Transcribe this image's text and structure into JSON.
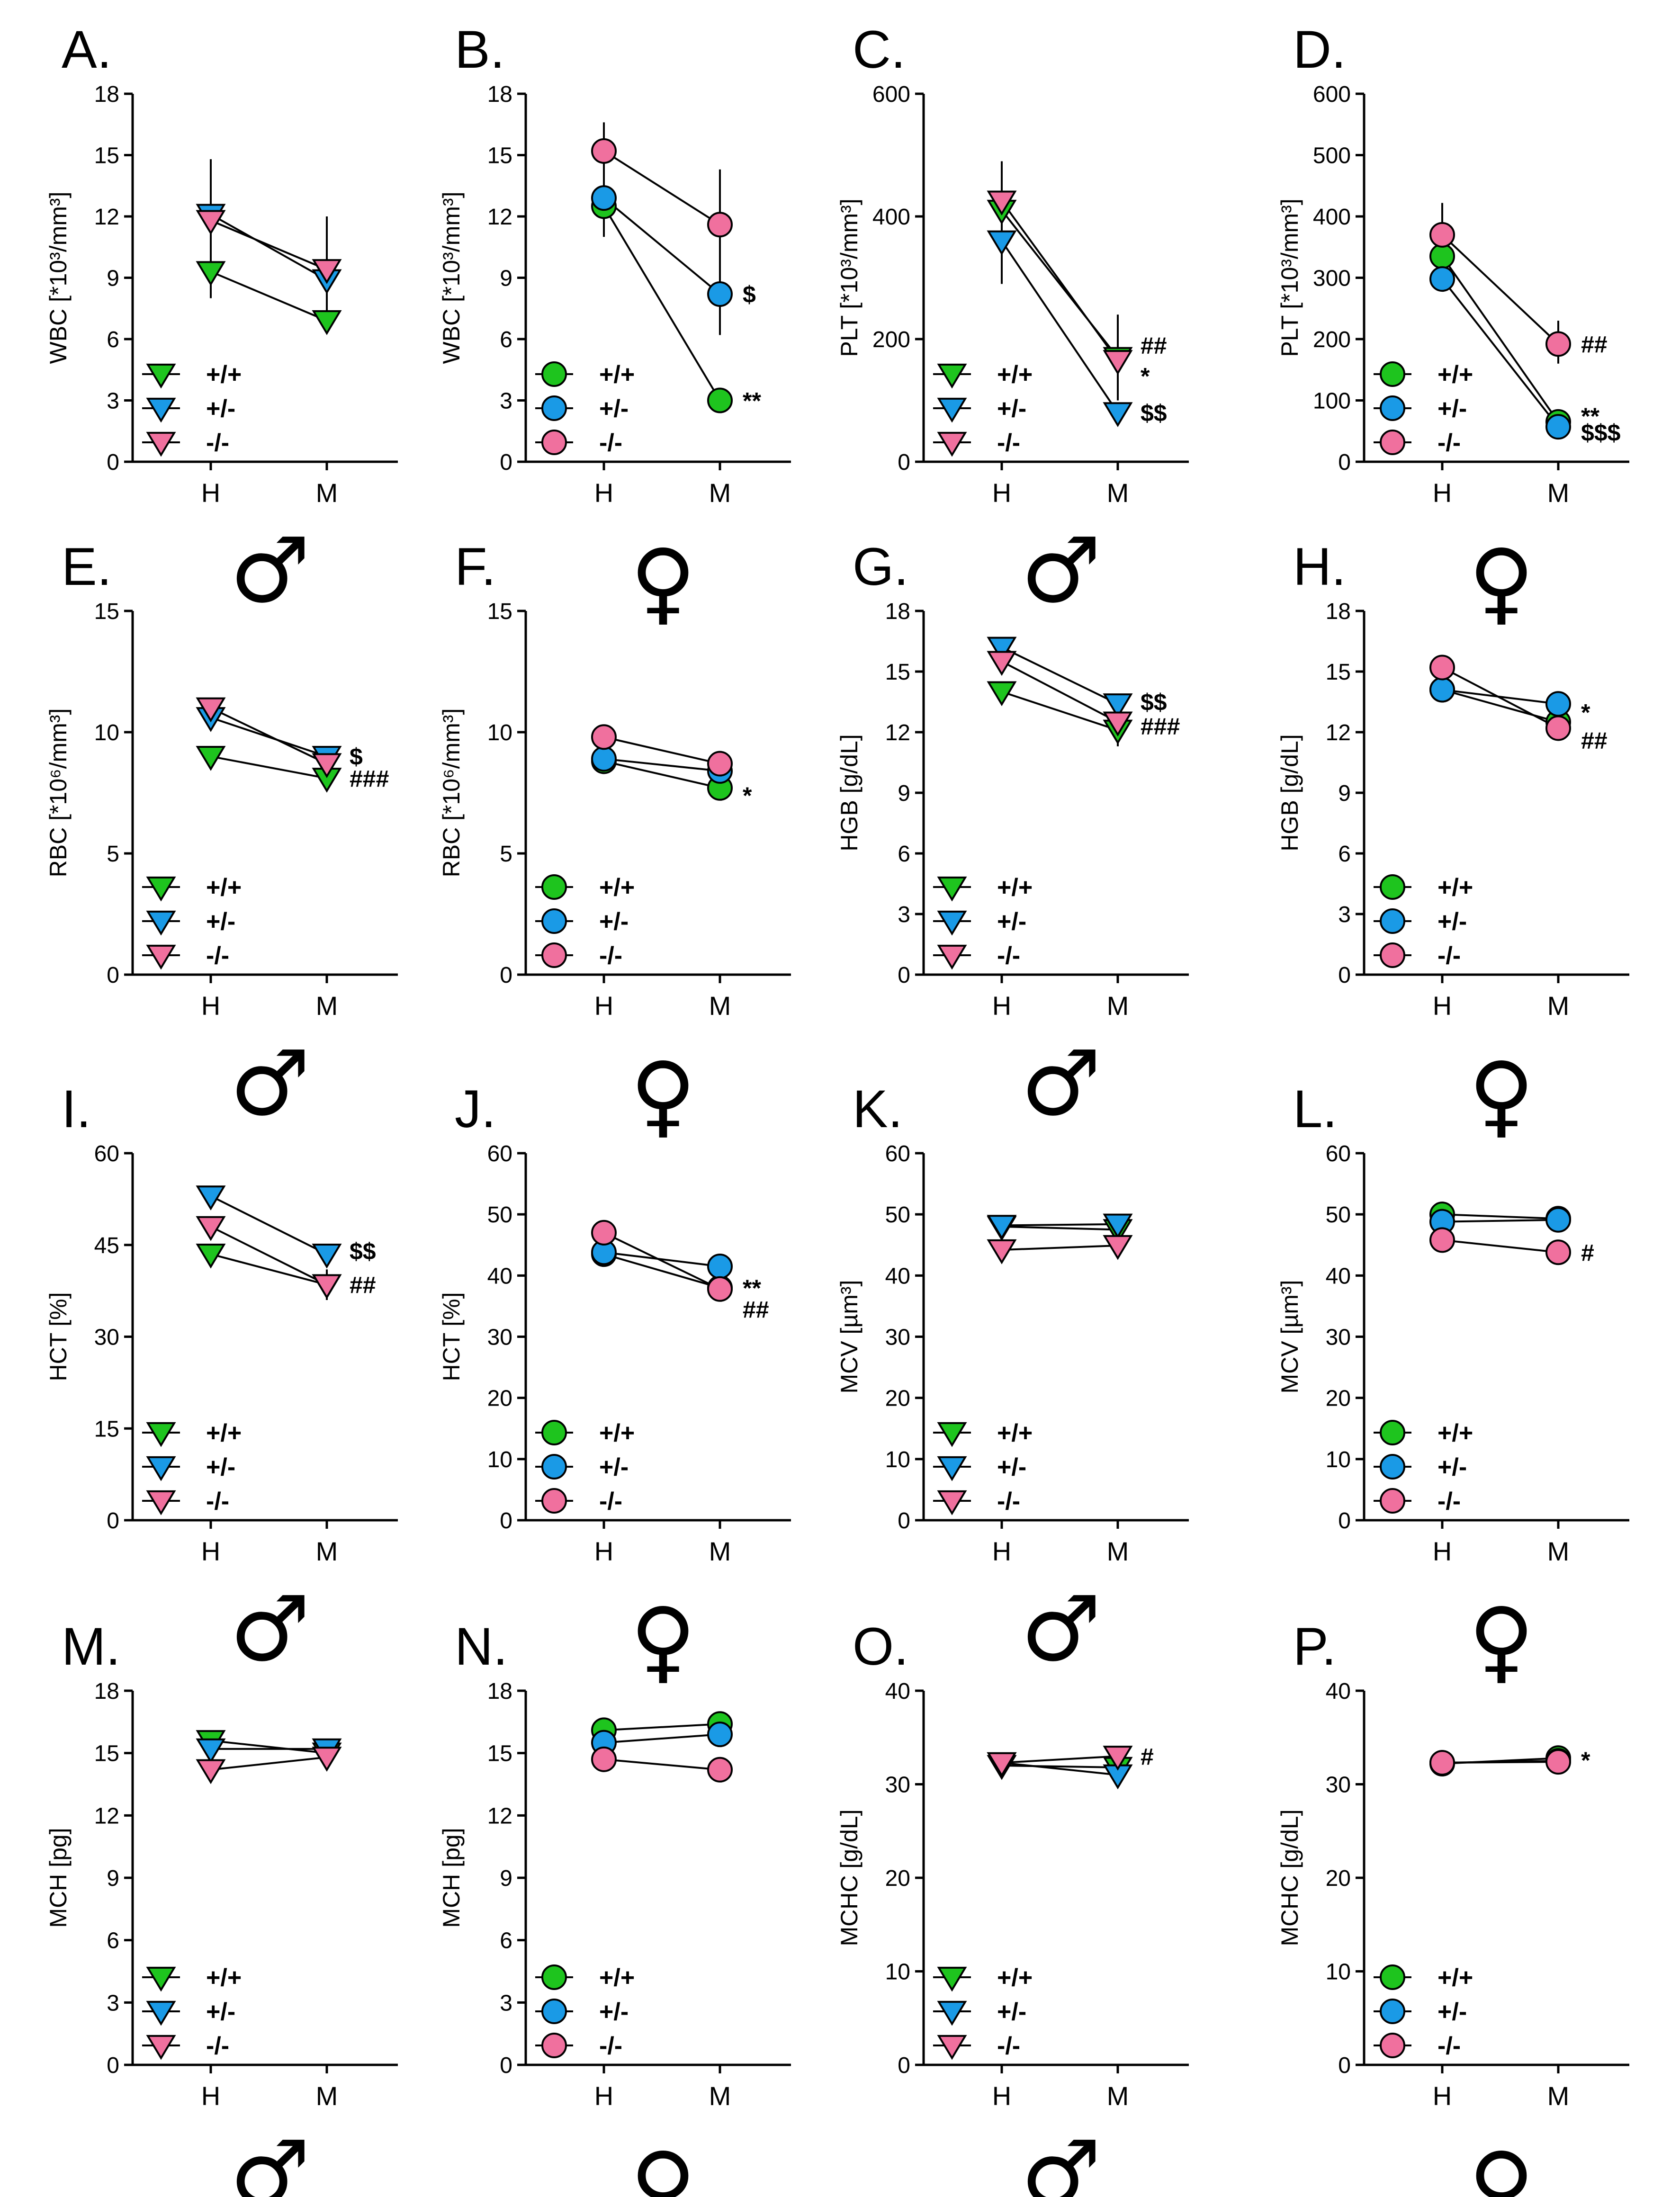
{
  "chart_data": [
    {
      "type": "line",
      "label": "A.",
      "ylabel": "WBC [*10³/mm³]",
      "ylim": [
        0,
        18
      ],
      "ticks": [
        0,
        3,
        6,
        9,
        12,
        15,
        18
      ],
      "categories": [
        "H",
        "M"
      ],
      "sex": "♂",
      "marker": "triangle",
      "series": [
        {
          "name": "+/+",
          "values": [
            9.3,
            6.9
          ]
        },
        {
          "name": "+/-",
          "values": [
            12.1,
            8.9
          ]
        },
        {
          "name": "-/-",
          "values": [
            11.8,
            9.4
          ]
        }
      ],
      "errors": [
        {
          "series": "-/-",
          "cat": "H",
          "lo": 8.0,
          "hi": 14.8
        },
        {
          "series": "-/-",
          "cat": "M",
          "lo": 7.2,
          "hi": 12.0
        }
      ],
      "annotations": []
    },
    {
      "type": "line",
      "label": "B.",
      "ylabel": "WBC [*10³/mm³]",
      "ylim": [
        0,
        18
      ],
      "ticks": [
        0,
        3,
        6,
        9,
        12,
        15,
        18
      ],
      "categories": [
        "H",
        "M"
      ],
      "sex": "♀",
      "marker": "circle",
      "series": [
        {
          "name": "+/+",
          "values": [
            12.5,
            3.0
          ]
        },
        {
          "name": "+/-",
          "values": [
            12.9,
            8.2
          ]
        },
        {
          "name": "-/-",
          "values": [
            15.2,
            11.6
          ]
        }
      ],
      "errors": [
        {
          "series": "-/-",
          "cat": "H",
          "lo": 11.0,
          "hi": 16.6
        },
        {
          "series": "-/-",
          "cat": "M",
          "lo": 6.2,
          "hi": 14.3
        }
      ],
      "annotations": [
        {
          "text": "$",
          "cat": "M",
          "y": 8.2
        },
        {
          "text": "**",
          "cat": "M",
          "y": 3.0
        }
      ]
    },
    {
      "type": "line",
      "label": "C.",
      "ylabel": "PLT [*10³/mm³]",
      "ylim": [
        0,
        600
      ],
      "ticks": [
        0,
        200,
        400,
        600
      ],
      "categories": [
        "H",
        "M"
      ],
      "sex": "♂",
      "marker": "triangle",
      "series": [
        {
          "name": "+/+",
          "values": [
            410,
            170
          ]
        },
        {
          "name": "+/-",
          "values": [
            360,
            80
          ]
        },
        {
          "name": "-/-",
          "values": [
            425,
            165
          ]
        }
      ],
      "errors": [
        {
          "series": "+/-",
          "cat": "H",
          "lo": 290,
          "hi": 490
        },
        {
          "series": "+/+",
          "cat": "M",
          "lo": 100,
          "hi": 240
        }
      ],
      "annotations": [
        {
          "text": "##",
          "cat": "M",
          "y": 190
        },
        {
          "text": "*",
          "cat": "M",
          "y": 140
        },
        {
          "text": "$$",
          "cat": "M",
          "y": 80
        }
      ]
    },
    {
      "type": "line",
      "label": "D.",
      "ylabel": "PLT [*10³/mm³]",
      "ylim": [
        0,
        600
      ],
      "ticks": [
        0,
        100,
        200,
        300,
        400,
        500,
        600
      ],
      "categories": [
        "H",
        "M"
      ],
      "sex": "♀",
      "marker": "circle",
      "series": [
        {
          "name": "+/+",
          "values": [
            335,
            65
          ]
        },
        {
          "name": "+/-",
          "values": [
            298,
            57
          ]
        },
        {
          "name": "-/-",
          "values": [
            370,
            192
          ]
        }
      ],
      "errors": [
        {
          "series": "-/-",
          "cat": "H",
          "lo": 280,
          "hi": 422
        },
        {
          "series": "-/-",
          "cat": "M",
          "lo": 160,
          "hi": 230
        }
      ],
      "annotations": [
        {
          "text": "##",
          "cat": "M",
          "y": 192
        },
        {
          "text": "**",
          "cat": "M",
          "y": 75
        },
        {
          "text": "$$$",
          "cat": "M",
          "y": 48
        }
      ]
    },
    {
      "type": "line",
      "label": "E.",
      "ylabel": "RBC [*10⁶/mm³]",
      "ylim": [
        0,
        15
      ],
      "ticks": [
        0,
        5,
        10,
        15
      ],
      "categories": [
        "H",
        "M"
      ],
      "sex": "♂",
      "marker": "triangle",
      "series": [
        {
          "name": "+/+",
          "values": [
            9.0,
            8.1
          ]
        },
        {
          "name": "+/-",
          "values": [
            10.6,
            9.0
          ]
        },
        {
          "name": "-/-",
          "values": [
            11.0,
            8.7
          ]
        }
      ],
      "errors": [],
      "annotations": [
        {
          "text": "$",
          "cat": "M",
          "y": 9.0
        },
        {
          "text": "###",
          "cat": "M",
          "y": 8.1
        }
      ]
    },
    {
      "type": "line",
      "label": "F.",
      "ylabel": "RBC [*10⁶/mm³]",
      "ylim": [
        0,
        15
      ],
      "ticks": [
        0,
        5,
        10,
        15
      ],
      "categories": [
        "H",
        "M"
      ],
      "sex": "♀",
      "marker": "circle",
      "series": [
        {
          "name": "+/+",
          "values": [
            8.8,
            7.7
          ]
        },
        {
          "name": "+/-",
          "values": [
            8.9,
            8.4
          ]
        },
        {
          "name": "-/-",
          "values": [
            9.8,
            8.7
          ]
        }
      ],
      "errors": [],
      "annotations": [
        {
          "text": "*",
          "cat": "M",
          "y": 7.4
        }
      ]
    },
    {
      "type": "line",
      "label": "G.",
      "ylabel": "HGB [g/dL]",
      "ylim": [
        0,
        18
      ],
      "ticks": [
        0,
        3,
        6,
        9,
        12,
        15,
        18
      ],
      "categories": [
        "H",
        "M"
      ],
      "sex": "♂",
      "marker": "triangle",
      "series": [
        {
          "name": "+/+",
          "values": [
            14.0,
            12.1
          ]
        },
        {
          "name": "+/-",
          "values": [
            16.2,
            13.4
          ]
        },
        {
          "name": "-/-",
          "values": [
            15.5,
            12.5
          ]
        }
      ],
      "errors": [
        {
          "series": "+/+",
          "cat": "M",
          "lo": 11.3,
          "hi": 12.9
        }
      ],
      "annotations": [
        {
          "text": "$$",
          "cat": "M",
          "y": 13.5
        },
        {
          "text": "###",
          "cat": "M",
          "y": 12.3
        }
      ]
    },
    {
      "type": "line",
      "label": "H.",
      "ylabel": "HGB [g/dL]",
      "ylim": [
        0,
        18
      ],
      "ticks": [
        0,
        3,
        6,
        9,
        12,
        15,
        18
      ],
      "categories": [
        "H",
        "M"
      ],
      "sex": "♀",
      "marker": "circle",
      "series": [
        {
          "name": "+/+",
          "values": [
            14.1,
            12.5
          ]
        },
        {
          "name": "+/-",
          "values": [
            14.1,
            13.4
          ]
        },
        {
          "name": "-/-",
          "values": [
            15.2,
            12.2
          ]
        }
      ],
      "errors": [],
      "annotations": [
        {
          "text": "*",
          "cat": "M",
          "y": 13.0
        },
        {
          "text": "##",
          "cat": "M",
          "y": 11.6
        }
      ]
    },
    {
      "type": "line",
      "label": "I.",
      "ylabel": "HCT [%]",
      "ylim": [
        0,
        60
      ],
      "ticks": [
        0,
        15,
        30,
        45,
        60
      ],
      "categories": [
        "H",
        "M"
      ],
      "sex": "♂",
      "marker": "triangle",
      "series": [
        {
          "name": "+/+",
          "values": [
            43.5,
            38.5
          ]
        },
        {
          "name": "+/-",
          "values": [
            53.0,
            43.5
          ]
        },
        {
          "name": "-/-",
          "values": [
            48.0,
            38.5
          ]
        }
      ],
      "errors": [
        {
          "series": "+/+",
          "cat": "M",
          "lo": 36.0,
          "hi": 41.0
        }
      ],
      "annotations": [
        {
          "text": "$$",
          "cat": "M",
          "y": 44.0
        },
        {
          "text": "##",
          "cat": "M",
          "y": 38.5
        }
      ]
    },
    {
      "type": "line",
      "label": "J.",
      "ylabel": "HCT [%]",
      "ylim": [
        0,
        60
      ],
      "ticks": [
        0,
        10,
        20,
        30,
        40,
        50,
        60
      ],
      "categories": [
        "H",
        "M"
      ],
      "sex": "♀",
      "marker": "circle",
      "series": [
        {
          "name": "+/+",
          "values": [
            43.5,
            38.0
          ]
        },
        {
          "name": "+/-",
          "values": [
            43.8,
            41.5
          ]
        },
        {
          "name": "-/-",
          "values": [
            47.0,
            37.8
          ]
        }
      ],
      "errors": [],
      "annotations": [
        {
          "text": "**",
          "cat": "M",
          "y": 38.0
        },
        {
          "text": "##",
          "cat": "M",
          "y": 34.5
        }
      ]
    },
    {
      "type": "line",
      "label": "K.",
      "ylabel": "MCV [µm³]",
      "ylim": [
        0,
        60
      ],
      "ticks": [
        0,
        10,
        20,
        30,
        40,
        50,
        60
      ],
      "categories": [
        "H",
        "M"
      ],
      "sex": "♂",
      "marker": "triangle",
      "series": [
        {
          "name": "+/+",
          "values": [
            48.0,
            47.5
          ]
        },
        {
          "name": "+/-",
          "values": [
            48.2,
            48.4
          ]
        },
        {
          "name": "-/-",
          "values": [
            44.2,
            44.9
          ]
        }
      ],
      "errors": [],
      "annotations": []
    },
    {
      "type": "line",
      "label": "L.",
      "ylabel": "MCV [µm³]",
      "ylim": [
        0,
        60
      ],
      "ticks": [
        0,
        10,
        20,
        30,
        40,
        50,
        60
      ],
      "categories": [
        "H",
        "M"
      ],
      "sex": "♀",
      "marker": "circle",
      "series": [
        {
          "name": "+/+",
          "values": [
            50.0,
            49.3
          ]
        },
        {
          "name": "+/-",
          "values": [
            48.8,
            49.1
          ]
        },
        {
          "name": "-/-",
          "values": [
            45.8,
            43.8
          ]
        }
      ],
      "errors": [],
      "annotations": [
        {
          "text": "#",
          "cat": "M",
          "y": 43.8
        }
      ]
    },
    {
      "type": "line",
      "label": "M.",
      "ylabel": "MCH [pg]",
      "ylim": [
        0,
        18
      ],
      "ticks": [
        0,
        3,
        6,
        9,
        12,
        15,
        18
      ],
      "categories": [
        "H",
        "M"
      ],
      "sex": "♂",
      "marker": "triangle",
      "series": [
        {
          "name": "+/+",
          "values": [
            15.6,
            15.0
          ]
        },
        {
          "name": "+/-",
          "values": [
            15.2,
            15.2
          ]
        },
        {
          "name": "-/-",
          "values": [
            14.2,
            14.8
          ]
        }
      ],
      "errors": [],
      "annotations": []
    },
    {
      "type": "line",
      "label": "N.",
      "ylabel": "MCH [pg]",
      "ylim": [
        0,
        18
      ],
      "ticks": [
        0,
        3,
        6,
        9,
        12,
        15,
        18
      ],
      "categories": [
        "H",
        "M"
      ],
      "sex": "♀",
      "marker": "circle",
      "series": [
        {
          "name": "+/+",
          "values": [
            16.1,
            16.4
          ]
        },
        {
          "name": "+/-",
          "values": [
            15.5,
            15.9
          ]
        },
        {
          "name": "-/-",
          "values": [
            14.7,
            14.2
          ]
        }
      ],
      "errors": [],
      "annotations": []
    },
    {
      "type": "line",
      "label": "O.",
      "ylabel": "MCHC [g/dL]",
      "ylim": [
        0,
        40
      ],
      "ticks": [
        0,
        10,
        20,
        30,
        40
      ],
      "categories": [
        "H",
        "M"
      ],
      "sex": "♂",
      "marker": "triangle",
      "series": [
        {
          "name": "+/+",
          "values": [
            32.0,
            31.8
          ]
        },
        {
          "name": "+/-",
          "values": [
            32.3,
            31.0
          ]
        },
        {
          "name": "-/-",
          "values": [
            32.3,
            33.0
          ]
        }
      ],
      "errors": [],
      "annotations": [
        {
          "text": "#",
          "cat": "M",
          "y": 33.0
        }
      ]
    },
    {
      "type": "line",
      "label": "P.",
      "ylabel": "MCHC [g/dL]",
      "ylim": [
        0,
        40
      ],
      "ticks": [
        0,
        10,
        20,
        30,
        40
      ],
      "categories": [
        "H",
        "M"
      ],
      "sex": "♀",
      "marker": "circle",
      "series": [
        {
          "name": "+/+",
          "values": [
            32.2,
            32.8
          ]
        },
        {
          "name": "+/-",
          "values": [
            32.3,
            32.5
          ]
        },
        {
          "name": "-/-",
          "values": [
            32.3,
            32.4
          ]
        }
      ],
      "errors": [],
      "annotations": [
        {
          "text": "*",
          "cat": "M",
          "y": 32.6
        }
      ]
    }
  ],
  "colors": {
    "+/+": "#1ec41e",
    "+/-": "#1a9ae6",
    "-/-": "#f0709e",
    "axis": "#000000"
  }
}
